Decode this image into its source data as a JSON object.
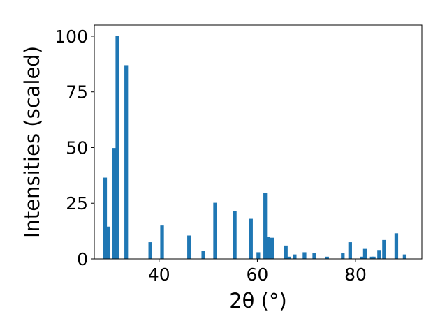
{
  "chart_data": {
    "type": "bar",
    "xlabel": "2θ (°)",
    "ylabel": "Intensities (scaled)",
    "xlim": [
      26.8,
      93.5
    ],
    "ylim": [
      0,
      105
    ],
    "x_ticks": [
      40,
      60,
      80
    ],
    "y_ticks": [
      0,
      25,
      50,
      75,
      100
    ],
    "grid": false,
    "bar_color": "#1f77b4",
    "bar_width": 0.75,
    "bars": [
      {
        "x": 29.0,
        "y": 36.5
      },
      {
        "x": 29.7,
        "y": 14.5
      },
      {
        "x": 30.8,
        "y": 49.8
      },
      {
        "x": 31.5,
        "y": 100.0
      },
      {
        "x": 33.3,
        "y": 87.0
      },
      {
        "x": 38.2,
        "y": 7.5
      },
      {
        "x": 40.6,
        "y": 15.0
      },
      {
        "x": 46.1,
        "y": 10.5
      },
      {
        "x": 49.0,
        "y": 3.5
      },
      {
        "x": 51.4,
        "y": 25.2
      },
      {
        "x": 55.4,
        "y": 21.5
      },
      {
        "x": 58.7,
        "y": 18.0
      },
      {
        "x": 60.2,
        "y": 3.0
      },
      {
        "x": 61.6,
        "y": 29.5
      },
      {
        "x": 62.2,
        "y": 10.0
      },
      {
        "x": 63.0,
        "y": 9.5
      },
      {
        "x": 65.8,
        "y": 6.0
      },
      {
        "x": 66.4,
        "y": 1.0
      },
      {
        "x": 67.6,
        "y": 2.0
      },
      {
        "x": 69.6,
        "y": 3.0
      },
      {
        "x": 71.6,
        "y": 2.5
      },
      {
        "x": 74.2,
        "y": 1.0
      },
      {
        "x": 77.4,
        "y": 2.5
      },
      {
        "x": 78.9,
        "y": 7.5
      },
      {
        "x": 81.3,
        "y": 1.0
      },
      {
        "x": 81.9,
        "y": 4.5
      },
      {
        "x": 83.3,
        "y": 1.0
      },
      {
        "x": 83.7,
        "y": 1.0
      },
      {
        "x": 84.8,
        "y": 4.0
      },
      {
        "x": 85.8,
        "y": 8.5
      },
      {
        "x": 88.3,
        "y": 11.5
      },
      {
        "x": 90.0,
        "y": 2.0
      }
    ]
  }
}
